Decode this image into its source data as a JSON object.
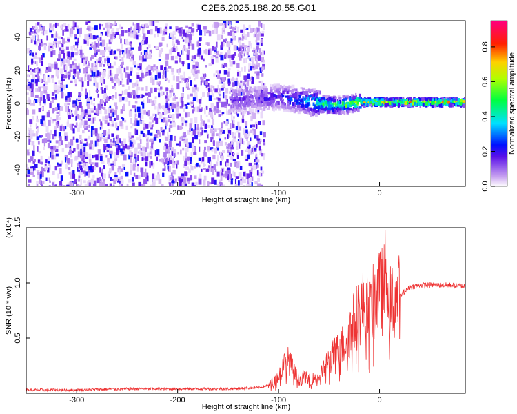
{
  "title": "C2E6.2025.188.20.55.G01",
  "colors": {
    "snr_line": "#ee3333",
    "scatter_purple": "#6a1fe0",
    "scatter_light": "#c9a8f2",
    "frame": "#000000"
  },
  "chart_data": [
    {
      "type": "heatmap",
      "xlabel": "Height of straight line (km)",
      "ylabel": "Frequency (Hz)",
      "xlim": [
        -350,
        85
      ],
      "ylim": [
        -50,
        50
      ],
      "x_ticks": [
        -300,
        -200,
        -100,
        0
      ],
      "y_ticks": [
        -40,
        -20,
        0,
        20,
        40
      ],
      "colorbar": {
        "label": "Normalized spectral amplitude",
        "range": [
          0.0,
          0.95
        ],
        "ticks": [
          "0.0",
          "0.2",
          "0.4",
          "0.6",
          "0.8"
        ],
        "colormap": "rainbow (white-violet-blue-cyan-green-yellow-red-magenta)"
      },
      "description_points": {
        "x": [
          -350,
          -300,
          -200,
          -120,
          -100,
          -80,
          -60,
          -40,
          -20,
          0,
          20,
          40,
          60,
          85
        ],
        "ridge_frequency": [
          0,
          0,
          0,
          3,
          4,
          2,
          0,
          -1,
          1,
          1,
          1,
          1,
          1,
          1
        ],
        "peak_amplitude": [
          0.15,
          0.15,
          0.2,
          0.2,
          0.25,
          0.35,
          0.6,
          0.65,
          0.8,
          0.9,
          0.8,
          0.85,
          0.85,
          0.9
        ]
      }
    },
    {
      "type": "line",
      "xlabel": "Height of straight line (km)",
      "ylabel": "SNR (10 * v/v)",
      "y_multiplier": "(x10⁴)",
      "xlim": [
        -350,
        85
      ],
      "ylim": [
        0,
        1.5
      ],
      "x_ticks": [
        -300,
        -200,
        -100,
        0
      ],
      "y_ticks": [
        "0.5",
        "1.0",
        "1.5"
      ],
      "series": [
        {
          "x": [
            -350,
            -300,
            -250,
            -200,
            -150,
            -120,
            -110,
            -100,
            -95,
            -90,
            -85,
            -80,
            -75,
            -70,
            -60,
            -50,
            -40,
            -35,
            -30,
            -25,
            -20,
            -15,
            -10,
            -5,
            0,
            5,
            8,
            10,
            15,
            20,
            25,
            30,
            40,
            50,
            60,
            70,
            85
          ],
          "y": [
            0.03,
            0.03,
            0.04,
            0.04,
            0.04,
            0.05,
            0.07,
            0.15,
            0.25,
            0.3,
            0.2,
            0.12,
            0.15,
            0.12,
            0.15,
            0.3,
            0.4,
            0.45,
            0.55,
            0.65,
            0.75,
            0.8,
            0.7,
            0.85,
            0.9,
            0.95,
            1.45,
            0.8,
            0.85,
            0.88,
            0.92,
            0.96,
            0.98,
            0.98,
            0.98,
            0.98,
            0.97
          ]
        }
      ]
    }
  ]
}
